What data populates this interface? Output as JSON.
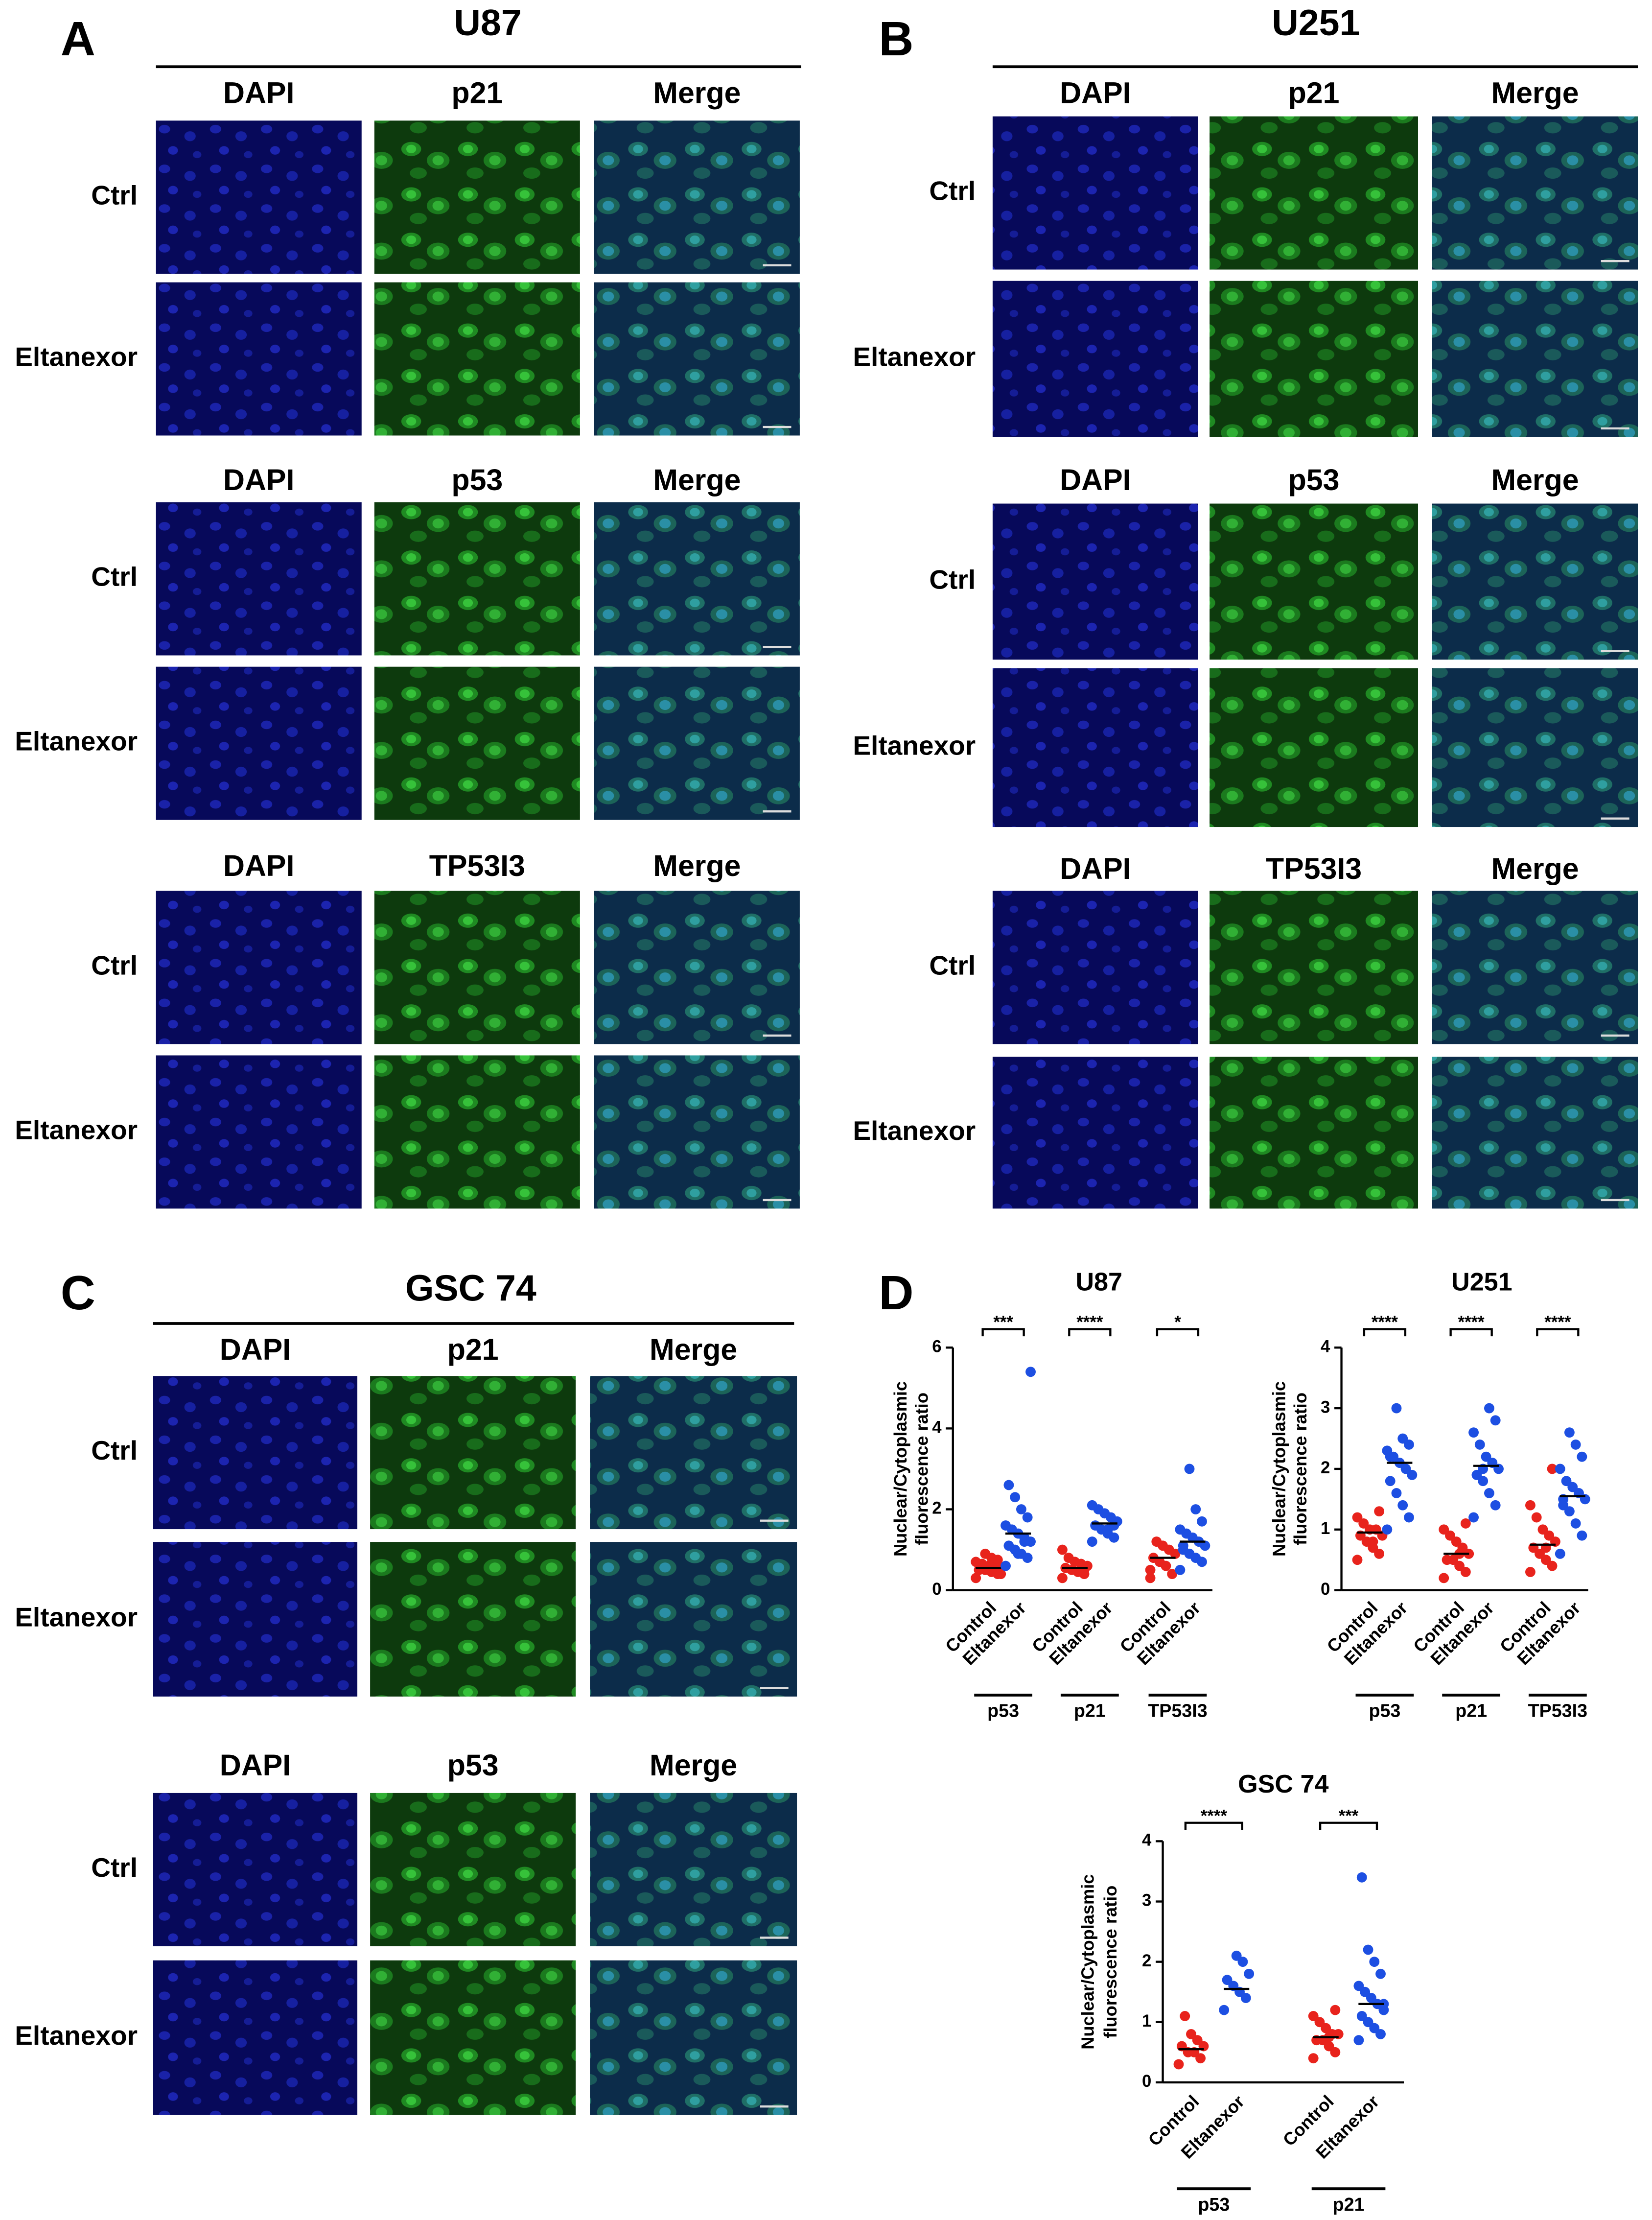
{
  "panels": [
    {
      "letter": "A",
      "title": "U87",
      "blocks": [
        {
          "headers": [
            "DAPI",
            "p21",
            "Merge"
          ],
          "rows": [
            "Ctrl",
            "Eltanexor"
          ]
        },
        {
          "headers": [
            "DAPI",
            "p53",
            "Merge"
          ],
          "rows": [
            "Ctrl",
            "Eltanexor"
          ]
        },
        {
          "headers": [
            "DAPI",
            "TP53I3",
            "Merge"
          ],
          "rows": [
            "Ctrl",
            "Eltanexor"
          ]
        }
      ]
    },
    {
      "letter": "B",
      "title": "U251",
      "blocks": [
        {
          "headers": [
            "DAPI",
            "p21",
            "Merge"
          ],
          "rows": [
            "Ctrl",
            "Eltanexor"
          ]
        },
        {
          "headers": [
            "DAPI",
            "p53",
            "Merge"
          ],
          "rows": [
            "Ctrl",
            "Eltanexor"
          ]
        },
        {
          "headers": [
            "DAPI",
            "TP53I3",
            "Merge"
          ],
          "rows": [
            "Ctrl",
            "Eltanexor"
          ]
        }
      ]
    },
    {
      "letter": "C",
      "title": "GSC 74",
      "blocks": [
        {
          "headers": [
            "DAPI",
            "p21",
            "Merge"
          ],
          "rows": [
            "Ctrl",
            "Eltanexor"
          ]
        },
        {
          "headers": [
            "DAPI",
            "p53",
            "Merge"
          ],
          "rows": [
            "Ctrl",
            "Eltanexor"
          ]
        }
      ]
    }
  ],
  "chart_panel": {
    "letter": "D"
  },
  "chart_data": [
    {
      "type": "strip",
      "title": "U87",
      "y_label": [
        "Nuclear/Cytoplasmic",
        "fluorescence ratio"
      ],
      "categories": [
        "Control",
        "Eltanexor",
        "Control",
        "Eltanexor",
        "Control",
        "Eltanexor"
      ],
      "groups": [
        "p53",
        "p21",
        "TP53I3"
      ],
      "significance": [
        "***",
        "****",
        "*"
      ],
      "colors": [
        "#e8231c",
        "#1d4fe2",
        "#e8231c",
        "#1d4fe2",
        "#e8231c",
        "#1d4fe2"
      ],
      "ylim": [
        0,
        6
      ],
      "yticks": [
        0,
        2,
        4,
        6
      ],
      "medians": [
        0.55,
        1.4,
        0.55,
        1.65,
        0.8,
        1.2
      ],
      "values": [
        [
          0.3,
          0.4,
          0.45,
          0.5,
          0.5,
          0.55,
          0.6,
          0.6,
          0.65,
          0.7,
          0.75,
          0.8,
          0.9,
          0.5,
          0.4
        ],
        [
          0.6,
          0.8,
          0.9,
          1.0,
          1.1,
          1.2,
          1.3,
          1.4,
          1.5,
          1.6,
          1.8,
          2.0,
          2.3,
          2.6,
          5.4,
          1.2,
          0.9
        ],
        [
          0.3,
          0.4,
          0.45,
          0.5,
          0.55,
          0.6,
          0.65,
          0.7,
          0.8,
          1.0,
          0.5
        ],
        [
          1.2,
          1.3,
          1.4,
          1.5,
          1.6,
          1.7,
          1.8,
          1.9,
          2.0,
          2.1,
          1.6,
          1.5
        ],
        [
          0.3,
          0.4,
          0.6,
          0.7,
          0.8,
          0.9,
          1.0,
          1.1,
          1.2,
          0.5
        ],
        [
          0.5,
          0.7,
          0.8,
          0.9,
          1.0,
          1.1,
          1.2,
          1.3,
          1.4,
          1.5,
          1.7,
          2.0,
          3.0,
          1.1
        ]
      ]
    },
    {
      "type": "strip",
      "title": "U251",
      "y_label": [
        "Nuclear/Cytoplasmic",
        "fluorescence ratio"
      ],
      "categories": [
        "Control",
        "Eltanexor",
        "Control",
        "Eltanexor",
        "Control",
        "Eltanexor"
      ],
      "groups": [
        "p53",
        "p21",
        "TP53I3"
      ],
      "significance": [
        "****",
        "****",
        "****"
      ],
      "colors": [
        "#e8231c",
        "#1d4fe2",
        "#e8231c",
        "#1d4fe2",
        "#e8231c",
        "#1d4fe2"
      ],
      "ylim": [
        0,
        4
      ],
      "yticks": [
        0,
        1,
        2,
        3,
        4
      ],
      "medians": [
        0.95,
        2.1,
        0.6,
        2.05,
        0.75,
        1.55
      ],
      "values": [
        [
          0.5,
          0.6,
          0.7,
          0.8,
          0.9,
          0.9,
          1.0,
          1.0,
          1.1,
          1.2,
          1.3,
          0.8
        ],
        [
          1.0,
          1.2,
          1.4,
          1.6,
          1.8,
          1.9,
          2.0,
          2.1,
          2.2,
          2.3,
          2.4,
          2.5,
          3.0,
          2.2
        ],
        [
          0.2,
          0.3,
          0.4,
          0.5,
          0.5,
          0.6,
          0.7,
          0.8,
          0.9,
          1.0,
          1.1,
          0.6
        ],
        [
          1.2,
          1.4,
          1.6,
          1.8,
          1.9,
          2.0,
          2.1,
          2.2,
          2.4,
          2.6,
          2.8,
          3.0,
          2.0
        ],
        [
          0.3,
          0.4,
          0.5,
          0.6,
          0.7,
          0.8,
          0.9,
          1.0,
          1.2,
          1.4,
          2.0,
          0.7
        ],
        [
          0.6,
          0.9,
          1.1,
          1.3,
          1.4,
          1.5,
          1.6,
          1.7,
          1.8,
          2.0,
          2.2,
          2.4,
          2.6,
          1.5
        ]
      ]
    },
    {
      "type": "strip",
      "title": "GSC 74",
      "y_label": [
        "Nuclear/Cytoplasmic",
        "fluorescence ratio"
      ],
      "categories": [
        "Control",
        "Eltanexor",
        "Control",
        "Eltanexor"
      ],
      "groups": [
        "p53",
        "p21"
      ],
      "significance": [
        "****",
        "***"
      ],
      "colors": [
        "#e8231c",
        "#1d4fe2",
        "#e8231c",
        "#1d4fe2"
      ],
      "ylim": [
        0,
        4
      ],
      "yticks": [
        0,
        1,
        2,
        3,
        4
      ],
      "medians": [
        0.55,
        1.55,
        0.75,
        1.3
      ],
      "values": [
        [
          0.3,
          0.4,
          0.5,
          0.5,
          0.6,
          0.6,
          0.7,
          0.8,
          1.1
        ],
        [
          1.2,
          1.4,
          1.5,
          1.6,
          1.7,
          1.8,
          2.0,
          2.1
        ],
        [
          0.4,
          0.5,
          0.6,
          0.7,
          0.7,
          0.8,
          0.8,
          0.9,
          1.0,
          1.1,
          1.2,
          0.75
        ],
        [
          0.7,
          0.8,
          0.9,
          1.0,
          1.1,
          1.2,
          1.3,
          1.4,
          1.5,
          1.6,
          1.8,
          2.0,
          2.2,
          3.4,
          1.3
        ]
      ]
    }
  ]
}
